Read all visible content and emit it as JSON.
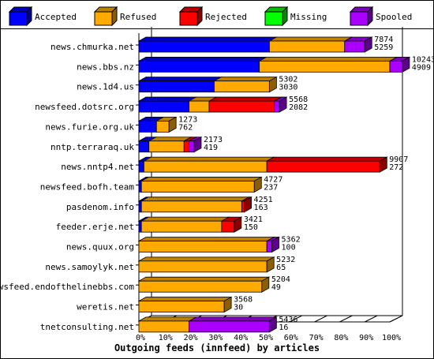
{
  "chart_data": {
    "type": "bar",
    "title": "",
    "xlabel": "Outgoing feeds (innfeed) by articles",
    "ylabel": "",
    "xlim": [
      0,
      100
    ],
    "x_ticks": [
      "0%",
      "10%",
      "20%",
      "30%",
      "40%",
      "50%",
      "60%",
      "70%",
      "80%",
      "90%",
      "100%"
    ],
    "legend_position": "top",
    "stacked": true,
    "orientation": "horizontal",
    "series": [
      {
        "name": "Accepted",
        "color": "#0000ff"
      },
      {
        "name": "Refused",
        "color": "#ffaa00"
      },
      {
        "name": "Rejected",
        "color": "#ff0000"
      },
      {
        "name": "Missing",
        "color": "#00ff00"
      },
      {
        "name": "Spooled",
        "color": "#aa00ff"
      }
    ],
    "categories": [
      {
        "host": "news.chmurka.net",
        "total": "7874",
        "second": "5259",
        "pct": [
          52,
          30,
          0,
          0,
          8
        ]
      },
      {
        "host": "news.bbs.nz",
        "total": "10243",
        "second": "4909",
        "pct": [
          48,
          52,
          0,
          0,
          5
        ]
      },
      {
        "host": "news.1d4.us",
        "total": "5302",
        "second": "3030",
        "pct": [
          30,
          22,
          0,
          0,
          0
        ]
      },
      {
        "host": "newsfeed.dotsrc.org",
        "total": "5568",
        "second": "2082",
        "pct": [
          20,
          8,
          26,
          0,
          2
        ]
      },
      {
        "host": "news.furie.org.uk",
        "total": "1273",
        "second": "762",
        "pct": [
          7,
          5,
          0,
          0,
          0
        ]
      },
      {
        "host": "nntp.terraraq.uk",
        "total": "2173",
        "second": "419",
        "pct": [
          4,
          14,
          2,
          0,
          2
        ]
      },
      {
        "host": "news.nntp4.net",
        "total": "9907",
        "second": "272",
        "pct": [
          2,
          49,
          45,
          0,
          0
        ]
      },
      {
        "host": "newsfeed.bofh.team",
        "total": "4727",
        "second": "237",
        "pct": [
          1,
          45,
          0,
          0,
          0
        ]
      },
      {
        "host": "pasdenom.info",
        "total": "4251",
        "second": "163",
        "pct": [
          1,
          40,
          1,
          0,
          0
        ]
      },
      {
        "host": "feeder.erje.net",
        "total": "3421",
        "second": "150",
        "pct": [
          1,
          32,
          5,
          0,
          0
        ]
      },
      {
        "host": "news.quux.org",
        "total": "5362",
        "second": "100",
        "pct": [
          0,
          51,
          0,
          0,
          2
        ]
      },
      {
        "host": "news.samoylyk.net",
        "total": "5232",
        "second": "65",
        "pct": [
          0,
          51,
          0,
          0,
          0
        ]
      },
      {
        "host": "newsfeed.endofthelinebbs.com",
        "total": "5204",
        "second": "49",
        "pct": [
          0,
          49,
          0,
          0,
          0
        ]
      },
      {
        "host": "weretis.net",
        "total": "3568",
        "second": "30",
        "pct": [
          0,
          34,
          0,
          0,
          0
        ]
      },
      {
        "host": "tnetconsulting.net",
        "total": "5436",
        "second": "16",
        "pct": [
          0,
          20,
          0,
          0,
          32
        ]
      }
    ]
  }
}
